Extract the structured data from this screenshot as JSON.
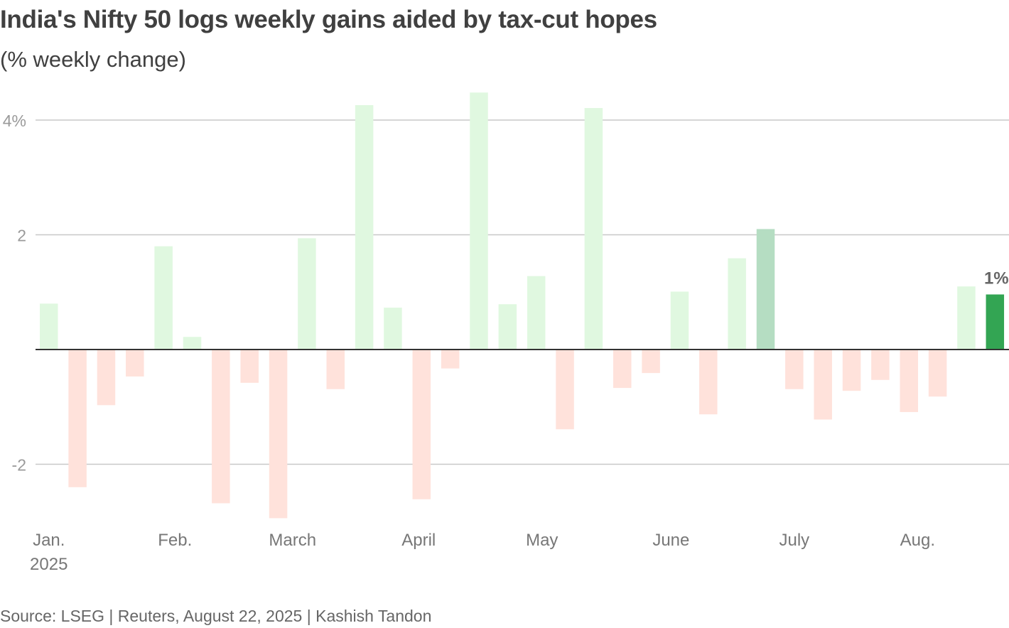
{
  "chart_data": {
    "type": "bar",
    "title": "India's Nifty 50 logs weekly gains aided by tax-cut hopes",
    "subtitle": "(% weekly change)",
    "ylabel": "% weekly change",
    "ylim": [
      -2.95,
      4.55
    ],
    "y_ticks": [
      {
        "value": 4,
        "label": "4%"
      },
      {
        "value": 2,
        "label": "2"
      },
      {
        "value": -2,
        "label": "-2"
      }
    ],
    "x_ticks": [
      {
        "index": 0,
        "label": "Jan.",
        "sublabel": "2025"
      },
      {
        "index": 4.4,
        "label": "Feb."
      },
      {
        "index": 8.5,
        "label": "March"
      },
      {
        "index": 12.9,
        "label": "April"
      },
      {
        "index": 17.2,
        "label": "May"
      },
      {
        "index": 21.7,
        "label": "June"
      },
      {
        "index": 26,
        "label": "July"
      },
      {
        "index": 30.3,
        "label": "Aug."
      }
    ],
    "values": [
      0.8,
      -2.4,
      -0.97,
      -0.47,
      1.8,
      0.22,
      -2.68,
      -0.58,
      -2.94,
      1.94,
      -0.69,
      4.26,
      0.73,
      -2.61,
      -0.33,
      4.48,
      0.79,
      1.28,
      -1.39,
      4.21,
      -0.67,
      -0.41,
      1.01,
      -1.13,
      1.59,
      2.1,
      -0.69,
      -1.22,
      -0.72,
      -0.53,
      -1.09,
      -0.82,
      1.1,
      0.96
    ],
    "highlight_index": 33,
    "secondary_highlight_index": 25,
    "annotation": {
      "index": 33,
      "label": "1%"
    },
    "colors": {
      "positive": "#e0f8e0",
      "negative": "#ffe2db",
      "highlight": "#33a553",
      "secondary_highlight": "#b5ddc2",
      "gridline": "#c8c8c8",
      "zero_line": "#333333",
      "tick_label": "#9a9a9a",
      "axis_label": "#777777",
      "annotation": "#666666"
    }
  },
  "source": "Source: LSEG | Reuters, August 22, 2025 | Kashish Tandon"
}
